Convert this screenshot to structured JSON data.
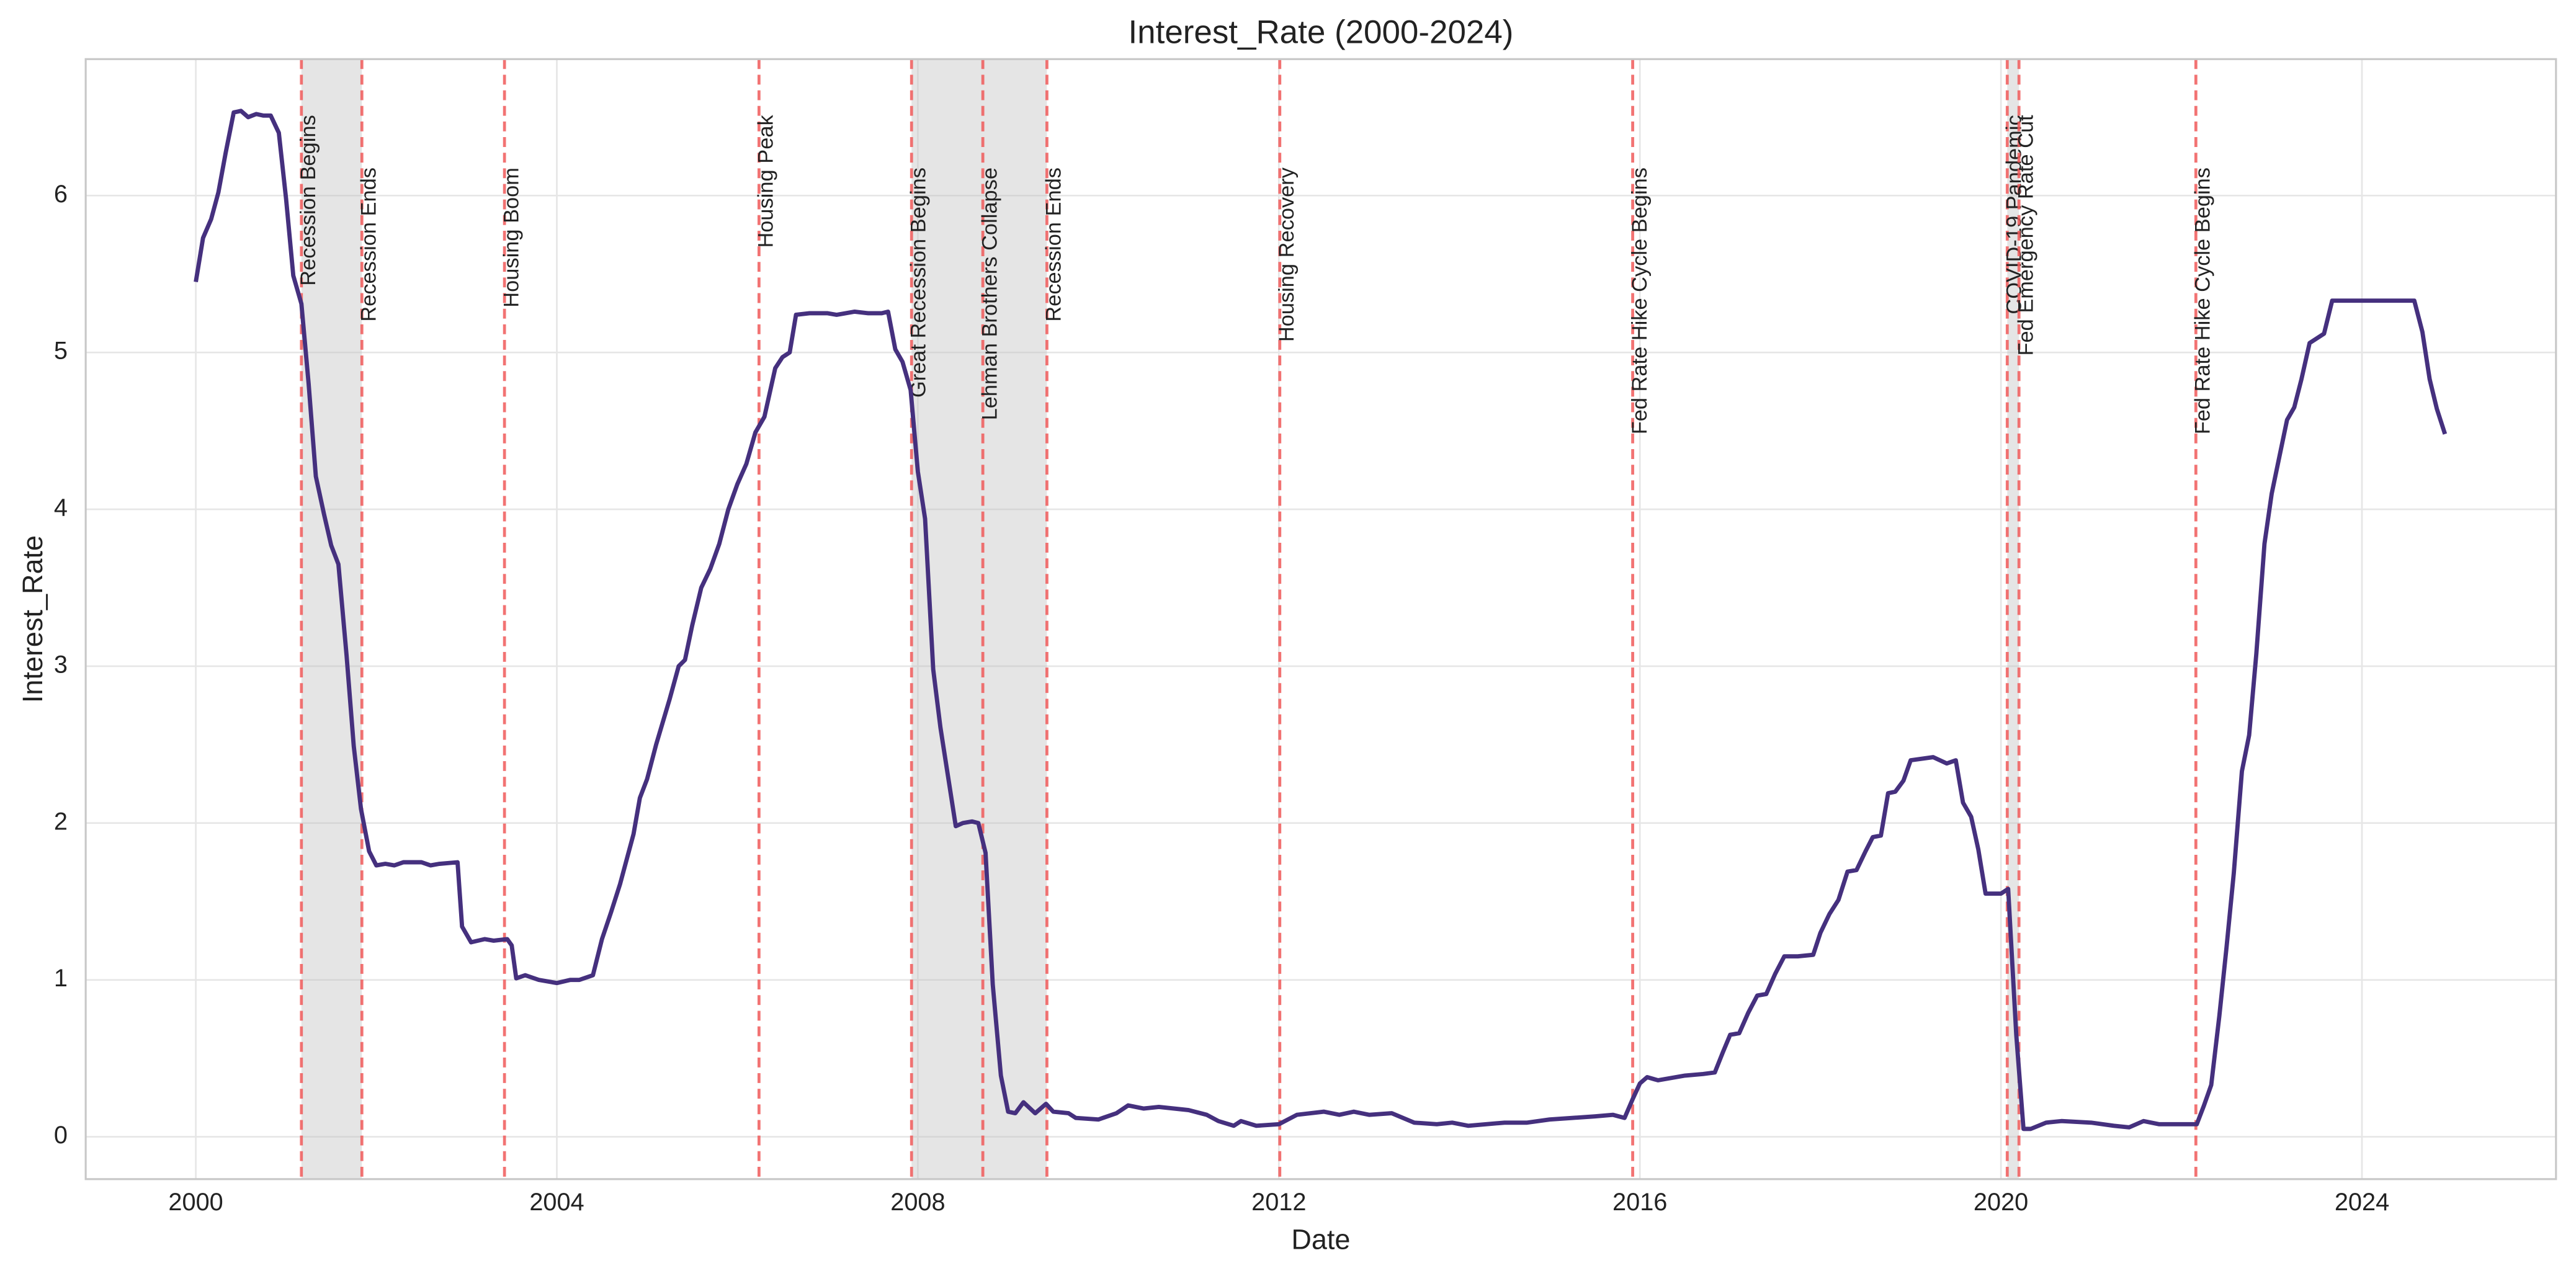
{
  "chart_data": {
    "type": "line",
    "title": "Interest_Rate (2000-2024)",
    "xlabel": "Date",
    "ylabel": "Interest_Rate",
    "color": "#45307e",
    "grid": true,
    "xlim": [
      1998.78,
      2026.15
    ],
    "ylim": [
      -0.27,
      6.87
    ],
    "xticks": [
      2000,
      2004,
      2008,
      2012,
      2016,
      2020,
      2024
    ],
    "yticks": [
      0,
      1,
      2,
      3,
      4,
      5,
      6
    ],
    "x": [
      2000.0,
      2000.08,
      2000.17,
      2000.25,
      2000.33,
      2000.42,
      2000.5,
      2000.58,
      2000.67,
      2000.75,
      2000.83,
      2000.92,
      2001.0,
      2001.08,
      2001.17,
      2001.25,
      2001.33,
      2001.42,
      2001.5,
      2001.58,
      2001.67,
      2001.75,
      2001.83,
      2001.92,
      2002.0,
      2002.1,
      2002.2,
      2002.3,
      2002.5,
      2002.6,
      2002.7,
      2002.9,
      2002.95,
      2003.05,
      2003.2,
      2003.3,
      2003.45,
      2003.5,
      2003.55,
      2003.65,
      2003.8,
      2004.0,
      2004.15,
      2004.25,
      2004.4,
      2004.5,
      2004.6,
      2004.7,
      2004.85,
      2004.92,
      2005.0,
      2005.1,
      2005.25,
      2005.35,
      2005.42,
      2005.5,
      2005.6,
      2005.7,
      2005.8,
      2005.9,
      2006.0,
      2006.1,
      2006.2,
      2006.3,
      2006.42,
      2006.5,
      2006.58,
      2006.65,
      2006.8,
      2007.0,
      2007.1,
      2007.3,
      2007.45,
      2007.6,
      2007.67,
      2007.75,
      2007.83,
      2007.92,
      2008.0,
      2008.08,
      2008.17,
      2008.25,
      2008.42,
      2008.5,
      2008.6,
      2008.67,
      2008.75,
      2008.83,
      2008.92,
      2009.0,
      2009.08,
      2009.17,
      2009.3,
      2009.42,
      2009.5,
      2009.67,
      2009.75,
      2010.0,
      2010.2,
      2010.33,
      2010.5,
      2010.67,
      2011.0,
      2011.2,
      2011.33,
      2011.5,
      2011.58,
      2011.75,
      2012.0,
      2012.2,
      2012.5,
      2012.67,
      2012.83,
      2013.0,
      2013.25,
      2013.5,
      2013.75,
      2013.92,
      2014.1,
      2014.5,
      2014.75,
      2015.0,
      2015.25,
      2015.5,
      2015.7,
      2015.83,
      2015.92,
      2016.0,
      2016.08,
      2016.2,
      2016.5,
      2016.7,
      2016.83,
      2016.92,
      2017.0,
      2017.1,
      2017.2,
      2017.3,
      2017.4,
      2017.5,
      2017.6,
      2017.75,
      2017.92,
      2018.0,
      2018.1,
      2018.2,
      2018.3,
      2018.4,
      2018.5,
      2018.58,
      2018.67,
      2018.75,
      2018.83,
      2018.92,
      2019.0,
      2019.25,
      2019.4,
      2019.5,
      2019.58,
      2019.67,
      2019.75,
      2019.83,
      2020.0,
      2020.08,
      2020.17,
      2020.25,
      2020.33,
      2020.5,
      2020.67,
      2021.0,
      2021.25,
      2021.42,
      2021.58,
      2021.75,
      2022.0,
      2022.17,
      2022.25,
      2022.33,
      2022.42,
      2022.5,
      2022.58,
      2022.67,
      2022.75,
      2022.83,
      2022.92,
      2023.0,
      2023.17,
      2023.25,
      2023.33,
      2023.42,
      2023.58,
      2023.67,
      2024.0,
      2024.58,
      2024.67,
      2024.75,
      2024.83,
      2024.92
    ],
    "values": [
      5.45,
      5.73,
      5.85,
      6.02,
      6.27,
      6.53,
      6.54,
      6.5,
      6.52,
      6.51,
      6.51,
      6.4,
      5.98,
      5.49,
      5.31,
      4.8,
      4.21,
      3.97,
      3.77,
      3.65,
      3.07,
      2.49,
      2.09,
      1.82,
      1.73,
      1.74,
      1.73,
      1.75,
      1.75,
      1.73,
      1.74,
      1.75,
      1.34,
      1.24,
      1.26,
      1.25,
      1.26,
      1.22,
      1.01,
      1.03,
      1.0,
      0.98,
      1.0,
      1.0,
      1.03,
      1.26,
      1.43,
      1.61,
      1.93,
      2.16,
      2.28,
      2.5,
      2.79,
      3.0,
      3.04,
      3.26,
      3.5,
      3.62,
      3.78,
      4.0,
      4.16,
      4.29,
      4.49,
      4.59,
      4.9,
      4.97,
      5.0,
      5.24,
      5.25,
      5.25,
      5.24,
      5.26,
      5.25,
      5.25,
      5.26,
      5.02,
      4.94,
      4.76,
      4.24,
      3.94,
      2.98,
      2.61,
      1.98,
      2.0,
      2.01,
      2.0,
      1.81,
      0.97,
      0.39,
      0.16,
      0.15,
      0.22,
      0.15,
      0.21,
      0.16,
      0.15,
      0.12,
      0.11,
      0.15,
      0.2,
      0.18,
      0.19,
      0.17,
      0.14,
      0.1,
      0.07,
      0.1,
      0.07,
      0.08,
      0.14,
      0.16,
      0.14,
      0.16,
      0.14,
      0.15,
      0.09,
      0.08,
      0.09,
      0.07,
      0.09,
      0.09,
      0.11,
      0.12,
      0.13,
      0.14,
      0.12,
      0.24,
      0.34,
      0.38,
      0.36,
      0.39,
      0.4,
      0.41,
      0.54,
      0.65,
      0.66,
      0.79,
      0.9,
      0.91,
      1.04,
      1.15,
      1.15,
      1.16,
      1.3,
      1.42,
      1.51,
      1.69,
      1.7,
      1.82,
      1.91,
      1.92,
      2.19,
      2.2,
      2.27,
      2.4,
      2.42,
      2.38,
      2.4,
      2.13,
      2.04,
      1.83,
      1.55,
      1.55,
      1.58,
      0.65,
      0.05,
      0.05,
      0.09,
      0.1,
      0.09,
      0.07,
      0.06,
      0.1,
      0.08,
      0.08,
      0.08,
      0.2,
      0.33,
      0.77,
      1.21,
      1.68,
      2.33,
      2.56,
      3.08,
      3.78,
      4.1,
      4.57,
      4.65,
      4.83,
      5.06,
      5.12,
      5.33,
      5.33,
      5.33,
      5.13,
      4.83,
      4.64,
      4.48
    ],
    "shaded": [
      [
        2001.17,
        2001.84
      ],
      [
        2007.93,
        2009.43
      ],
      [
        2020.07,
        2020.2
      ]
    ],
    "events": [
      {
        "x": 2001.17,
        "label": "Recession Begins"
      },
      {
        "x": 2001.84,
        "label": "Recession Ends"
      },
      {
        "x": 2003.42,
        "label": "Housing Boom"
      },
      {
        "x": 2006.24,
        "label": "Housing Peak"
      },
      {
        "x": 2007.93,
        "label": "Great Recession Begins"
      },
      {
        "x": 2008.72,
        "label": "Lehman Brothers Collapse"
      },
      {
        "x": 2009.43,
        "label": "Recession Ends"
      },
      {
        "x": 2012.01,
        "label": "Housing Recovery"
      },
      {
        "x": 2015.92,
        "label": "Fed Rate Hike Cycle Begins"
      },
      {
        "x": 2020.07,
        "label": "COVID-19 Pandemic"
      },
      {
        "x": 2020.2,
        "label": "Fed Emergency Rate Cut"
      },
      {
        "x": 2022.16,
        "label": "Fed Rate Hike Cycle Begins"
      }
    ]
  }
}
